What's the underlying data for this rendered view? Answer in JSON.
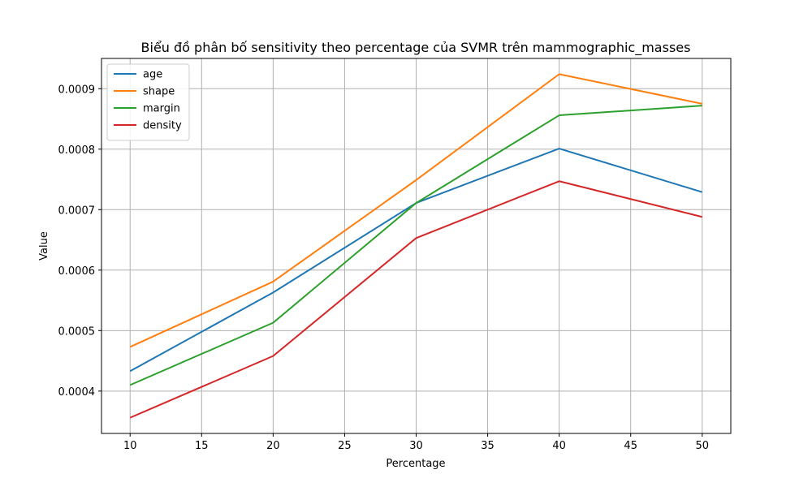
{
  "chart_data": {
    "type": "line",
    "title": "Biểu đồ phân bố sensitivity theo percentage của SVMR trên mammographic_masses",
    "xlabel": "Percentage",
    "ylabel": "Value",
    "x": [
      10,
      20,
      30,
      40,
      50
    ],
    "xlim": [
      8,
      52
    ],
    "ylim": [
      0.00033,
      0.00095
    ],
    "xticks": [
      10,
      15,
      20,
      25,
      30,
      35,
      40,
      45,
      50
    ],
    "yticks": [
      0.0004,
      0.0005,
      0.0006,
      0.0007,
      0.0008,
      0.0009
    ],
    "ytick_labels": [
      "0.0004",
      "0.0005",
      "0.0006",
      "0.0007",
      "0.0008",
      "0.0009"
    ],
    "grid": true,
    "legend_position": "top-left",
    "series": [
      {
        "name": "age",
        "color": "#1f77b4",
        "values": [
          0.000433,
          0.000563,
          0.000711,
          0.000801,
          0.000729
        ]
      },
      {
        "name": "shape",
        "color": "#ff7f0e",
        "values": [
          0.000473,
          0.000581,
          0.000749,
          0.000924,
          0.000875
        ]
      },
      {
        "name": "margin",
        "color": "#2ca02c",
        "values": [
          0.00041,
          0.000513,
          0.000711,
          0.000856,
          0.000872
        ]
      },
      {
        "name": "density",
        "color": "#d62728",
        "values": [
          0.000356,
          0.000458,
          0.000653,
          0.000747,
          0.000688
        ]
      }
    ]
  }
}
